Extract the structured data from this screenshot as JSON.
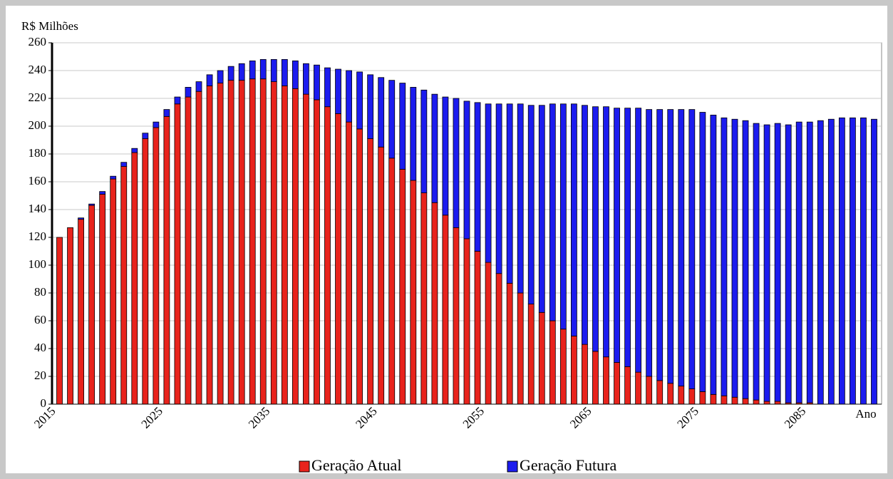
{
  "chart_data": {
    "type": "stacked-bar",
    "y_label": "R$ Milhões",
    "x_label": "Ano",
    "categories": [
      "2015",
      null,
      null,
      null,
      null,
      null,
      null,
      null,
      null,
      null,
      "2025",
      null,
      null,
      null,
      null,
      null,
      null,
      null,
      null,
      null,
      "2035",
      null,
      null,
      null,
      null,
      null,
      null,
      null,
      null,
      null,
      "2045",
      null,
      null,
      null,
      null,
      null,
      null,
      null,
      null,
      null,
      "2055",
      null,
      null,
      null,
      null,
      null,
      null,
      null,
      null,
      null,
      "2065",
      null,
      null,
      null,
      null,
      null,
      null,
      null,
      null,
      null,
      "2075",
      null,
      null,
      null,
      null,
      null,
      null,
      null,
      null,
      null,
      "2085",
      null,
      null,
      null,
      null,
      null,
      null
    ],
    "series": [
      {
        "name": "Geração Atual",
        "color": "#e8231c",
        "values": [
          120,
          127,
          133,
          143,
          151,
          162,
          171,
          181,
          191,
          199,
          207,
          216,
          221,
          225,
          229,
          231,
          233,
          233,
          234,
          234,
          232,
          229,
          227,
          223,
          219,
          214,
          209,
          203,
          198,
          191,
          185,
          177,
          169,
          161,
          152,
          145,
          136,
          127,
          119,
          110,
          102,
          94,
          87,
          80,
          72,
          66,
          60,
          54,
          49,
          43,
          38,
          34,
          30,
          27,
          23,
          20,
          17,
          15,
          13,
          11,
          9,
          7,
          6,
          5,
          4,
          3,
          2,
          2,
          1,
          1,
          1,
          0,
          0,
          0,
          0,
          0,
          0
        ]
      },
      {
        "name": "Geração Futura",
        "color": "#1c1cee",
        "values": [
          0,
          0,
          1,
          1,
          2,
          2,
          3,
          3,
          4,
          4,
          5,
          5,
          7,
          7,
          8,
          9,
          10,
          12,
          13,
          14,
          16,
          19,
          20,
          22,
          25,
          28,
          32,
          37,
          41,
          46,
          50,
          56,
          62,
          67,
          74,
          78,
          85,
          93,
          99,
          107,
          114,
          122,
          129,
          136,
          143,
          149,
          156,
          162,
          167,
          172,
          176,
          180,
          183,
          186,
          190,
          192,
          195,
          197,
          199,
          201,
          201,
          201,
          200,
          200,
          200,
          199,
          199,
          200,
          200,
          202,
          202,
          204,
          205,
          206,
          206,
          206,
          205
        ]
      }
    ],
    "ylim": [
      0,
      260
    ],
    "yticks": [
      0,
      20,
      40,
      60,
      80,
      100,
      120,
      140,
      160,
      180,
      200,
      220,
      240,
      260
    ],
    "grid": true,
    "legend": "bottom"
  }
}
